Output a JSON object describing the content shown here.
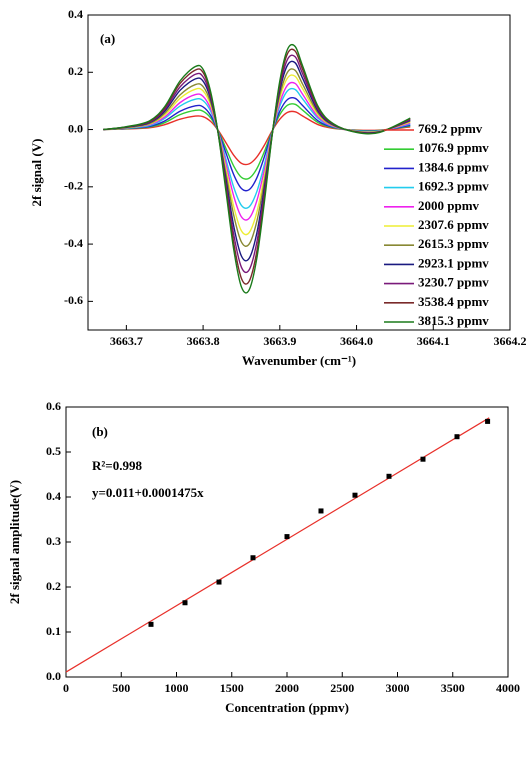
{
  "chart_data": [
    {
      "type": "line",
      "xlabel": "Wavenumber (cm⁻¹)",
      "ylabel": "2f signal (V)",
      "annotations": [
        "(a)"
      ],
      "legend": "right",
      "xlim": [
        3663.65,
        3664.2
      ],
      "ylim": [
        -0.7,
        0.4
      ],
      "xticks": [
        3663.7,
        3663.8,
        3663.9,
        {
          "value": 3664,
          "label": "3664.0"
        },
        3664.1,
        3664.2
      ],
      "yticks": [
        -0.6,
        -0.4,
        -0.2,
        {
          "value": 0,
          "label": "0.0"
        },
        0.2,
        0.4
      ],
      "x": [
        3663.67,
        3663.7,
        3663.73,
        3663.75,
        3663.77,
        3663.79,
        3663.8,
        3663.81,
        3663.82,
        3663.83,
        3663.84,
        3663.85,
        3663.86,
        3663.87,
        3663.88,
        3663.89,
        3663.9,
        3663.91,
        3663.92,
        3663.93,
        3663.95,
        3663.97,
        3664.0,
        3664.03,
        3664.07
      ],
      "series": [
        {
          "name": "769.2 ppmv",
          "color": "#e8302a",
          "values": [
            0,
            0.002,
            0.006,
            0.017,
            0.036,
            0.047,
            0.045,
            0.028,
            -0.004,
            -0.047,
            -0.09,
            -0.118,
            -0.12,
            -0.096,
            -0.054,
            -0.004,
            0.036,
            0.06,
            0.062,
            0.047,
            0.017,
            0.004,
            -0.002,
            -0.002,
            0.009
          ]
        },
        {
          "name": "1076.9 ppmv",
          "color": "#33cc33",
          "values": [
            0,
            0.003,
            0.009,
            0.024,
            0.052,
            0.067,
            0.064,
            0.04,
            -0.006,
            -0.067,
            -0.128,
            -0.167,
            -0.17,
            -0.137,
            -0.076,
            -0.006,
            0.052,
            0.085,
            0.088,
            0.067,
            0.024,
            0.006,
            -0.003,
            -0.003,
            0.012
          ]
        },
        {
          "name": "1384.6 ppmv",
          "color": "#2222cc",
          "values": [
            0,
            0.004,
            0.011,
            0.03,
            0.064,
            0.083,
            0.079,
            0.049,
            -0.008,
            -0.083,
            -0.158,
            -0.206,
            -0.21,
            -0.169,
            -0.094,
            -0.008,
            0.064,
            0.105,
            0.109,
            0.083,
            0.03,
            0.008,
            -0.004,
            -0.004,
            0.015
          ]
        },
        {
          "name": "1692.3 ppmv",
          "color": "#22ccee",
          "values": [
            0,
            0.005,
            0.014,
            0.039,
            0.082,
            0.106,
            0.101,
            0.063,
            -0.01,
            -0.106,
            -0.202,
            -0.265,
            -0.27,
            -0.217,
            -0.121,
            -0.01,
            0.082,
            0.135,
            0.14,
            0.106,
            0.039,
            0.01,
            -0.005,
            -0.005,
            0.019
          ]
        },
        {
          "name": "2000 ppmv",
          "color": "#ee22ee",
          "values": [
            0,
            0.006,
            0.017,
            0.044,
            0.094,
            0.122,
            0.116,
            0.072,
            -0.011,
            -0.122,
            -0.233,
            -0.305,
            -0.31,
            -0.249,
            -0.139,
            -0.011,
            0.094,
            0.155,
            0.161,
            0.122,
            0.044,
            0.011,
            -0.006,
            -0.006,
            0.022
          ]
        },
        {
          "name": "2307.6 ppmv",
          "color": "#eeee33",
          "values": [
            0,
            0.006,
            0.019,
            0.051,
            0.109,
            0.141,
            0.135,
            0.084,
            -0.013,
            -0.141,
            -0.27,
            -0.354,
            -0.36,
            -0.289,
            -0.161,
            -0.013,
            0.109,
            0.18,
            0.186,
            0.141,
            0.051,
            0.013,
            -0.006,
            -0.006,
            0.026
          ]
        },
        {
          "name": "2615.3 ppmv",
          "color": "#888833",
          "values": [
            0,
            0.007,
            0.021,
            0.057,
            0.121,
            0.157,
            0.15,
            0.093,
            -0.014,
            -0.157,
            -0.3,
            -0.393,
            -0.4,
            -0.321,
            -0.179,
            -0.014,
            0.121,
            0.2,
            0.207,
            0.157,
            0.057,
            0.014,
            -0.007,
            -0.007,
            0.029
          ]
        },
        {
          "name": "2923.1 ppmv",
          "color": "#1a1a80",
          "values": [
            0,
            0.008,
            0.024,
            0.064,
            0.137,
            0.177,
            0.169,
            0.105,
            -0.016,
            -0.177,
            -0.338,
            -0.442,
            -0.45,
            -0.362,
            -0.201,
            -0.016,
            0.137,
            0.225,
            0.233,
            0.177,
            0.064,
            0.016,
            -0.008,
            -0.008,
            0.032
          ]
        },
        {
          "name": "3230.7 ppmv",
          "color": "#7a1a7a",
          "values": [
            0,
            0.009,
            0.026,
            0.07,
            0.149,
            0.193,
            0.184,
            0.114,
            -0.018,
            -0.193,
            -0.368,
            -0.481,
            -0.49,
            -0.394,
            -0.219,
            -0.018,
            0.149,
            0.245,
            0.254,
            0.193,
            0.07,
            0.018,
            -0.009,
            -0.009,
            0.035
          ]
        },
        {
          "name": "3538.4 ppmv",
          "color": "#7a2a2a",
          "values": [
            0,
            0.009,
            0.028,
            0.076,
            0.161,
            0.208,
            0.199,
            0.123,
            -0.019,
            -0.208,
            -0.397,
            -0.52,
            -0.53,
            -0.426,
            -0.237,
            -0.019,
            0.161,
            0.265,
            0.274,
            0.208,
            0.076,
            0.019,
            -0.009,
            -0.009,
            0.038
          ]
        },
        {
          "name": "3815.3 ppmv",
          "color": "#1a7a1a",
          "values": [
            0,
            0.01,
            0.03,
            0.08,
            0.17,
            0.22,
            0.21,
            0.13,
            -0.02,
            -0.22,
            -0.42,
            -0.55,
            -0.56,
            -0.45,
            -0.25,
            -0.02,
            0.17,
            0.28,
            0.29,
            0.22,
            0.08,
            0.02,
            -0.01,
            -0.01,
            0.04
          ]
        }
      ]
    },
    {
      "type": "scatter",
      "xlabel": "Concentration (ppmv)",
      "ylabel": "2f signal amplitude(V)",
      "annotations": [
        "(b)",
        "R²=0.998",
        "y=0.011+0.0001475x"
      ],
      "xlim": [
        0,
        4000
      ],
      "ylim": [
        0,
        0.6
      ],
      "xticks": [
        0,
        500,
        1000,
        1500,
        2000,
        2500,
        3000,
        3500,
        4000
      ],
      "yticks": [
        {
          "value": 0,
          "label": "0.0"
        },
        0.1,
        0.2,
        0.3,
        0.4,
        0.5,
        0.6
      ],
      "color": "#000000",
      "x": [
        769.2,
        1076.9,
        1384.6,
        1692.3,
        2000,
        2307.6,
        2615.3,
        2923.1,
        3230.7,
        3538.4,
        3815.3
      ],
      "values": [
        0.117,
        0.165,
        0.211,
        0.265,
        0.312,
        0.369,
        0.404,
        0.446,
        0.484,
        0.534,
        0.568
      ],
      "errors": [
        0.004,
        0.004,
        0.003,
        0.003,
        0.003,
        0.005,
        0.005,
        0.004,
        0.003,
        0.003,
        0.003
      ],
      "fit": {
        "color": "#e8302a",
        "x": [
          0,
          3830
        ],
        "values": [
          0.011,
          0.576
        ]
      }
    }
  ]
}
